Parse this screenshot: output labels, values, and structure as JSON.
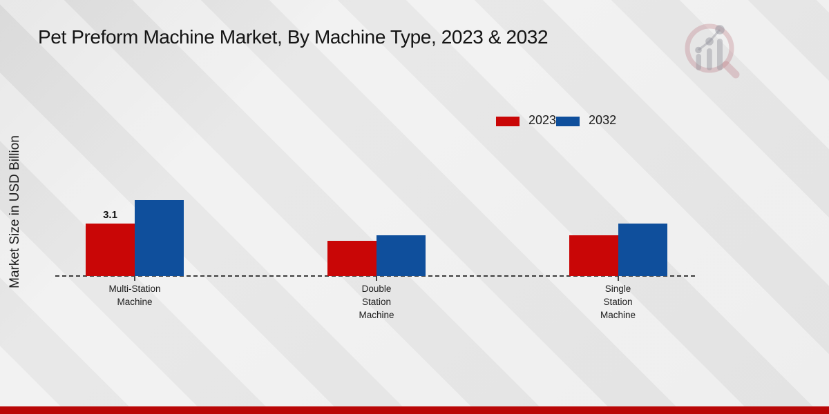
{
  "chart_data": {
    "type": "bar",
    "title": "Pet Preform Machine Market, By Machine Type, 2023 & 2032",
    "categories": [
      "Multi-Station Machine",
      "Double Station Machine",
      "Single Station Machine"
    ],
    "tick_labels": [
      "Multi-Station\nMachine",
      "Double\nStation\nMachine",
      "Single\nStation\nMachine"
    ],
    "series": [
      {
        "name": "2023",
        "color": "#c90606",
        "values": [
          3.1,
          2.1,
          2.4
        ]
      },
      {
        "name": "2032",
        "color": "#0f4f9c",
        "values": [
          4.5,
          2.4,
          3.1
        ]
      }
    ],
    "annotations": [
      {
        "series_index": 0,
        "category_index": 0,
        "text": "3.1"
      }
    ],
    "xlabel": "",
    "ylabel": "Market Size in USD Billion",
    "ylim": [
      0,
      5
    ],
    "grid": false,
    "legend_position": "top-right",
    "legend": [
      "2023",
      "2032"
    ]
  },
  "watermark": {
    "name": "market-research-magnifier-logo"
  },
  "colors": {
    "series_2023": "#c90606",
    "series_2032": "#0f4f9c",
    "footer_bar": "#b90707",
    "axis_line": "#3c3c3c",
    "background": "#e9e9e9"
  }
}
